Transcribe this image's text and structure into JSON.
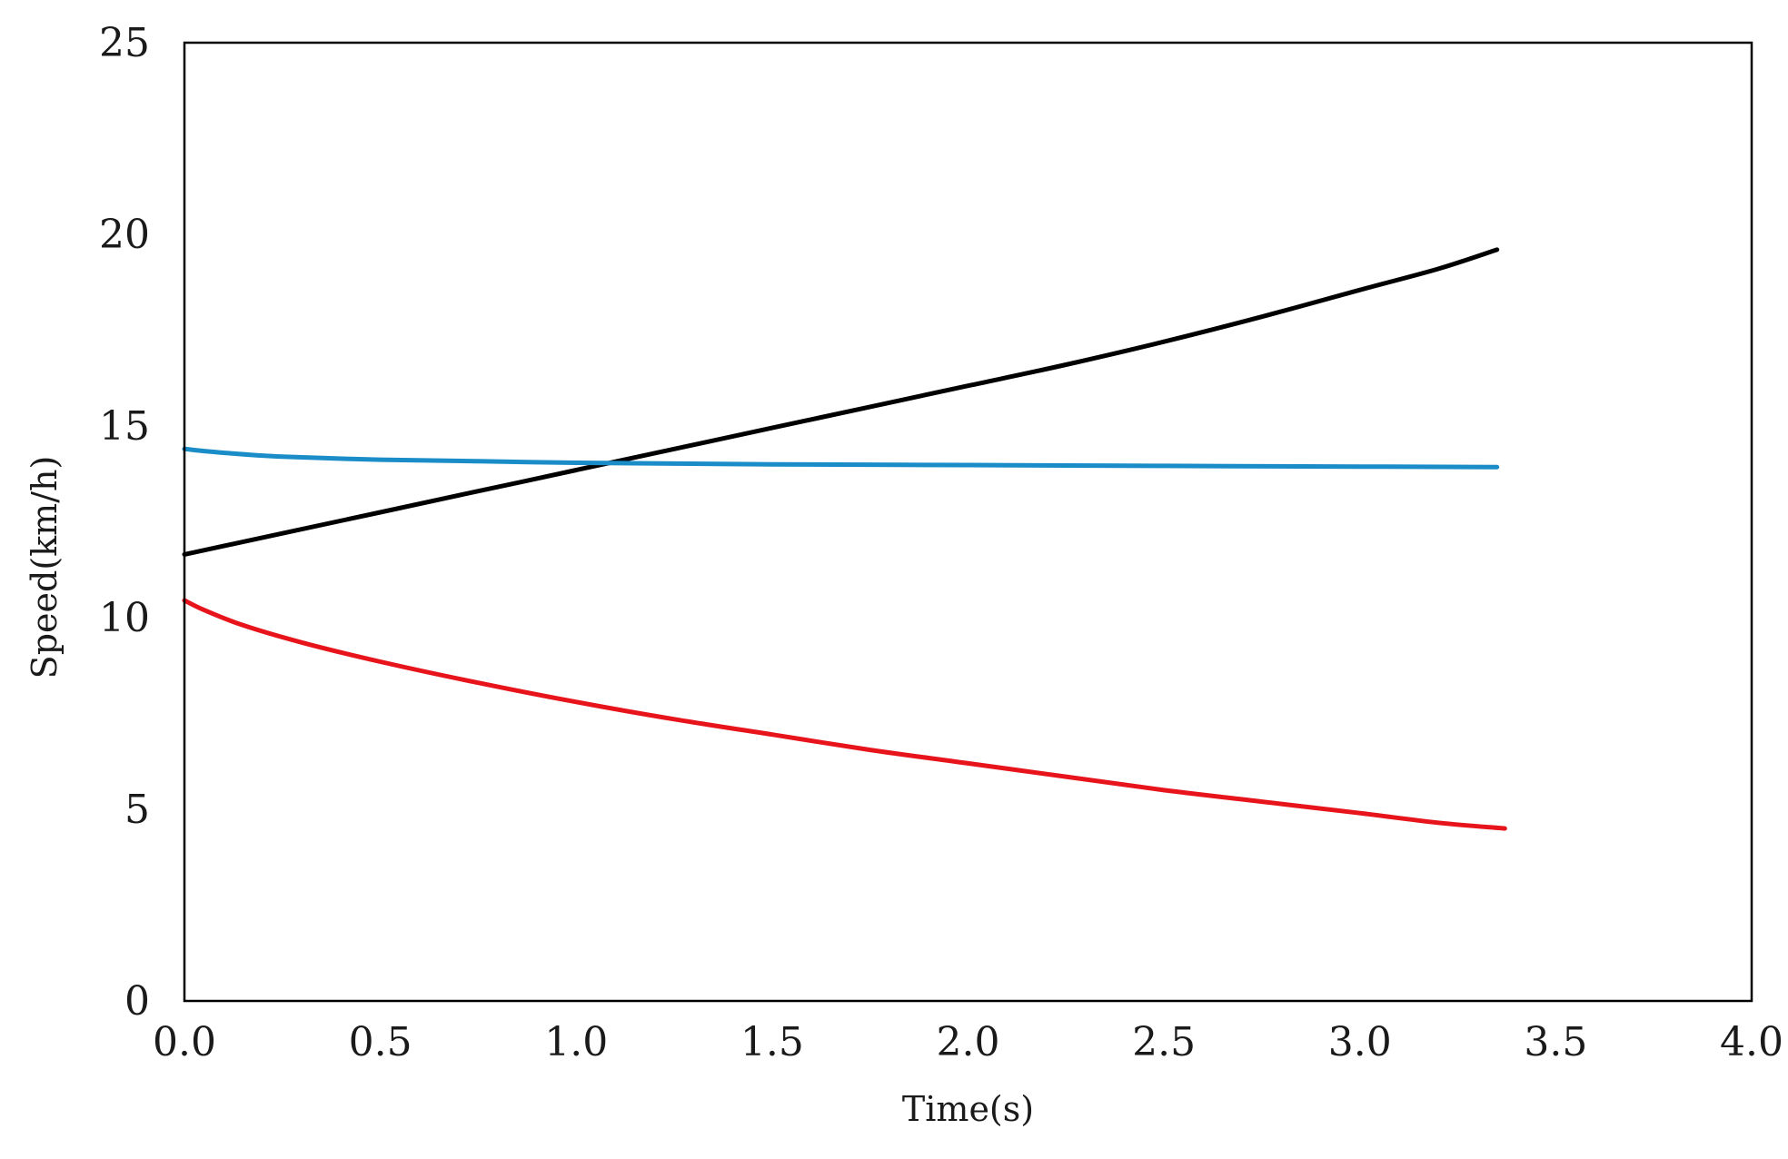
{
  "chart_data": {
    "type": "line",
    "title": "",
    "xlabel": "Time(s)",
    "ylabel": "Speed(km/h)",
    "xlim": [
      0,
      4
    ],
    "ylim": [
      0,
      25
    ],
    "xticks": [
      "0.0",
      "0.5",
      "1.0",
      "1.5",
      "2.0",
      "2.5",
      "3.0",
      "3.5",
      "4.0"
    ],
    "yticks": [
      "0",
      "5",
      "10",
      "15",
      "20",
      "25"
    ],
    "grid": false,
    "legend": "none",
    "series": [
      {
        "color": "#000000",
        "x": [
          0,
          0.25,
          0.5,
          0.75,
          1.0,
          1.25,
          1.5,
          1.75,
          2.0,
          2.25,
          2.5,
          2.75,
          3.0,
          3.2,
          3.35
        ],
        "y": [
          11.65,
          12.2,
          12.75,
          13.3,
          13.85,
          14.4,
          14.95,
          15.5,
          16.05,
          16.6,
          17.2,
          17.85,
          18.55,
          19.1,
          19.6
        ]
      },
      {
        "color": "#1a8cc7",
        "x": [
          0,
          0.1,
          0.25,
          0.5,
          0.75,
          1.0,
          1.25,
          1.5,
          2.0,
          2.5,
          3.0,
          3.35
        ],
        "y": [
          14.4,
          14.3,
          14.2,
          14.12,
          14.08,
          14.04,
          14.02,
          14.0,
          13.98,
          13.96,
          13.94,
          13.93
        ]
      },
      {
        "color": "#e8141c",
        "x": [
          0,
          0.05,
          0.15,
          0.3,
          0.5,
          0.75,
          1.0,
          1.25,
          1.5,
          1.75,
          2.0,
          2.25,
          2.5,
          2.75,
          3.0,
          3.2,
          3.37
        ],
        "y": [
          10.45,
          10.2,
          9.8,
          9.35,
          8.85,
          8.3,
          7.8,
          7.35,
          6.95,
          6.55,
          6.2,
          5.85,
          5.5,
          5.2,
          4.9,
          4.65,
          4.5
        ]
      }
    ]
  }
}
